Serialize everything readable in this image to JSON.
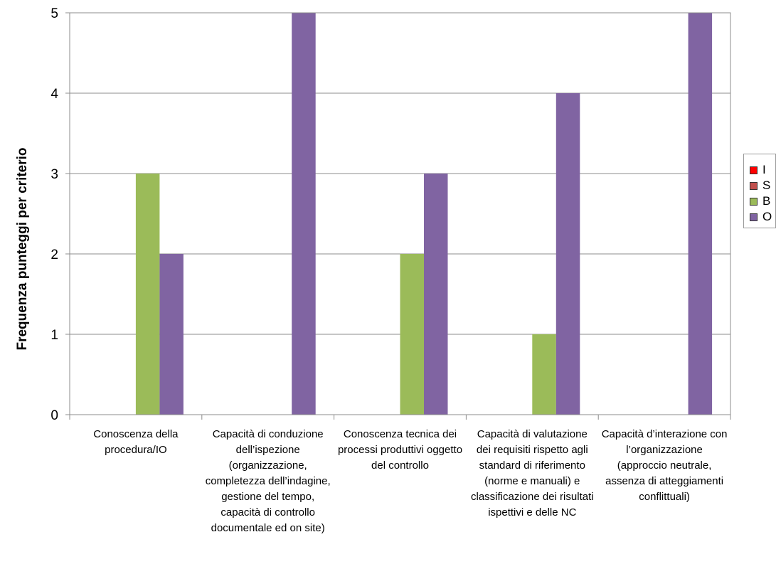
{
  "chart_data": {
    "type": "bar",
    "title": "",
    "xlabel": "",
    "ylabel": "Frequenza punteggi per criterio",
    "ylim": [
      0,
      5
    ],
    "yticks": [
      "0",
      "1",
      "2",
      "3",
      "4",
      "5"
    ],
    "grid": true,
    "legend_position": "right",
    "categories": [
      "Conoscenza della procedura/IO",
      "Capacità di conduzione dell’ispezione (organizzazione, completezza dell’indagine, gestione del tempo, capacità di controllo documentale ed on site)",
      "Conoscenza tecnica dei processi produttivi oggetto del controllo",
      "Capacità di valutazione dei requisiti rispetto agli standard di riferimento (norme e manuali) e classificazione dei risultati ispettivi e delle NC",
      "Capacità d’interazione con l’organizzazione (approccio neutrale, assenza di atteggiamenti conflittuali)"
    ],
    "series": [
      {
        "name": "I",
        "color": "#ff0000",
        "values": [
          0,
          0,
          0,
          0,
          0
        ]
      },
      {
        "name": "S",
        "color": "#c0504d",
        "values": [
          0,
          0,
          0,
          0,
          0
        ]
      },
      {
        "name": "B",
        "color": "#9bbb59",
        "values": [
          3,
          0,
          2,
          1,
          0
        ]
      },
      {
        "name": "O",
        "color": "#8064a2",
        "values": [
          2,
          5,
          3,
          4,
          5
        ]
      }
    ]
  }
}
